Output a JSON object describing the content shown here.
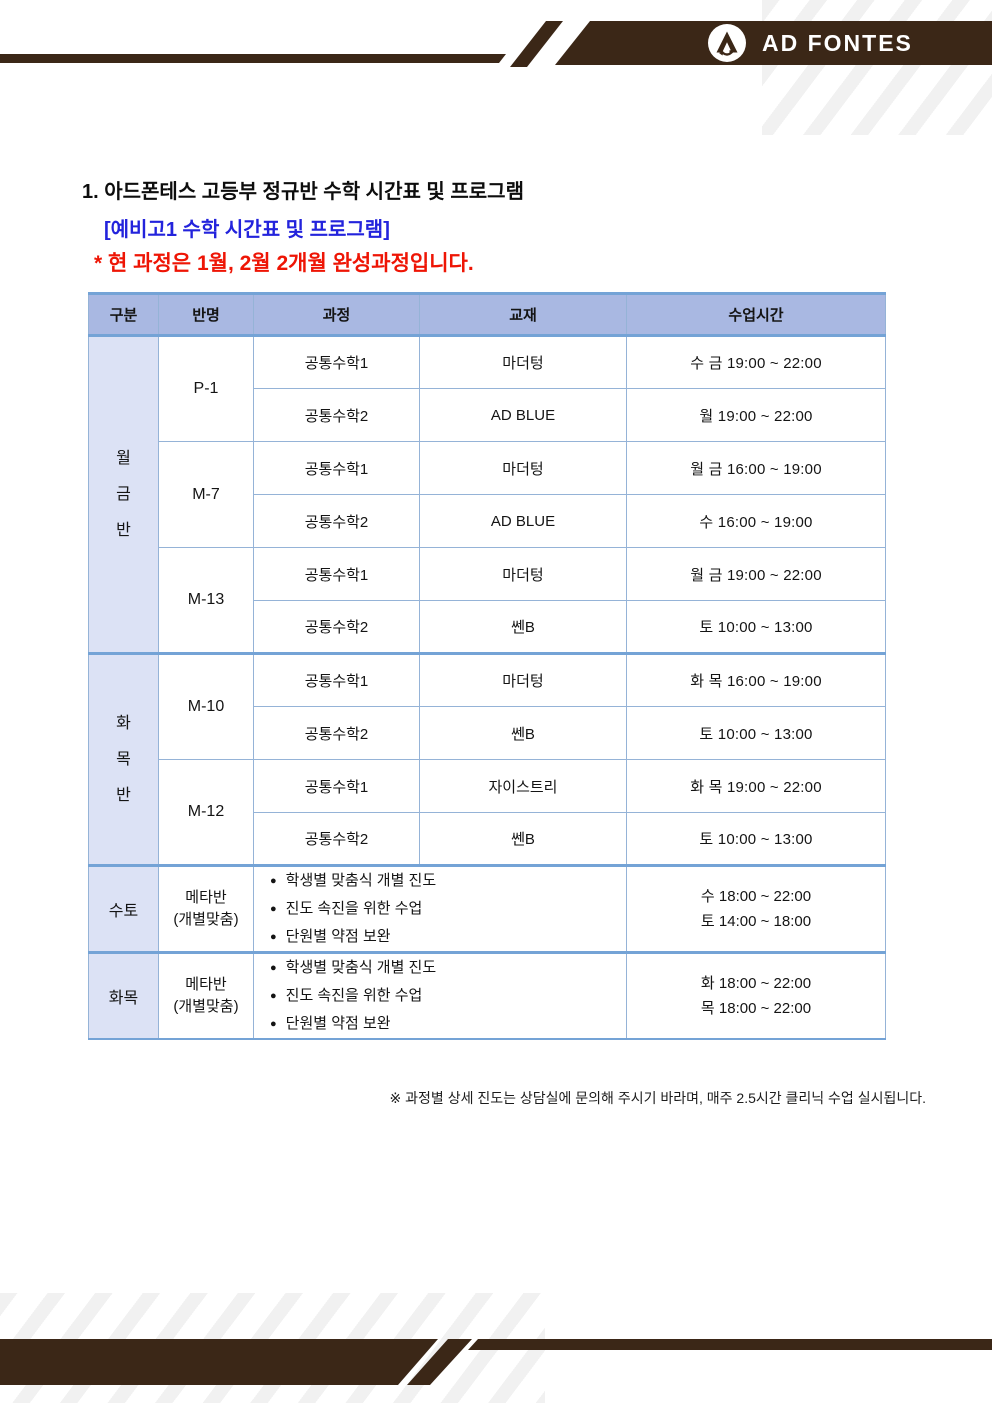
{
  "brand": {
    "name": "AD FONTES",
    "logo_icon": "ad-fontes-circle-a"
  },
  "title": "1. 아드폰테스 고등부 정규반 수학 시간표 및 프로그램",
  "subtitle": "[예비고1 수학 시간표 및 프로그램]",
  "notice": "* 현 과정은 1월, 2월 2개월 완성과정입니다.",
  "glyphs": {
    "bullet": "●"
  },
  "colors": {
    "brand_brown": "#3b2717",
    "header_bg": "#a9b8e2",
    "group_bg": "#dce2f5",
    "border_thin": "#95b3d7",
    "border_thick": "#74a3d6",
    "subtitle_blue": "#2323dc",
    "notice_red": "#ee1505"
  },
  "table": {
    "columns": [
      "구분",
      "반명",
      "과정",
      "교재",
      "수업시간"
    ],
    "sections": [
      {
        "group": "월금반",
        "classes": [
          {
            "name": "P-1",
            "rows": [
              {
                "course": "공통수학1",
                "book": "마더텅",
                "time": "수 금 19:00 ~ 22:00"
              },
              {
                "course": "공통수학2",
                "book": "AD BLUE",
                "time": "월 19:00 ~ 22:00"
              }
            ]
          },
          {
            "name": "M-7",
            "rows": [
              {
                "course": "공통수학1",
                "book": "마더텅",
                "time": "월 금 16:00 ~ 19:00"
              },
              {
                "course": "공통수학2",
                "book": "AD BLUE",
                "time": "수 16:00 ~ 19:00"
              }
            ]
          },
          {
            "name": "M-13",
            "rows": [
              {
                "course": "공통수학1",
                "book": "마더텅",
                "time": "월 금 19:00 ~ 22:00"
              },
              {
                "course": "공통수학2",
                "book": "쎈B",
                "time": "토 10:00 ~ 13:00"
              }
            ]
          }
        ]
      },
      {
        "group": "화목반",
        "classes": [
          {
            "name": "M-10",
            "rows": [
              {
                "course": "공통수학1",
                "book": "마더텅",
                "time": "화 목 16:00 ~ 19:00"
              },
              {
                "course": "공통수학2",
                "book": "쎈B",
                "time": "토 10:00 ~ 13:00"
              }
            ]
          },
          {
            "name": "M-12",
            "rows": [
              {
                "course": "공통수학1",
                "book": "자이스트리",
                "time": "화 목 19:00 ~ 22:00"
              },
              {
                "course": "공통수학2",
                "book": "쎈B",
                "time": "토 10:00 ~ 13:00"
              }
            ]
          }
        ]
      }
    ],
    "meta_rows": [
      {
        "group": "수토",
        "class_name": "메타반",
        "class_sub": "(개별맞춤)",
        "bullets": [
          "학생별 맞춤식 개별 진도",
          "진도 속진을 위한 수업",
          "단원별 약점 보완"
        ],
        "times": [
          "수 18:00 ~ 22:00",
          "토 14:00 ~ 18:00"
        ]
      },
      {
        "group": "화목",
        "class_name": "메타반",
        "class_sub": "(개별맞춤)",
        "bullets": [
          "학생별 맞춤식 개별 진도",
          "진도 속진을 위한 수업",
          "단원별 약점 보완"
        ],
        "times": [
          "화 18:00 ~ 22:00",
          "목 18:00 ~ 22:00"
        ]
      }
    ]
  },
  "footnote": "※ 과정별 상세 진도는 상담실에 문의해 주시기 바라며, 매주 2.5시간 클리닉 수업 실시됩니다."
}
